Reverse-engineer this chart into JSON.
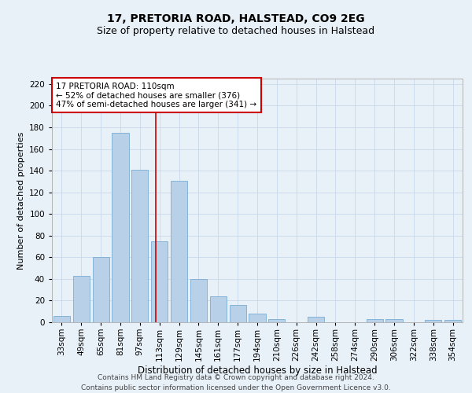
{
  "title1": "17, PRETORIA ROAD, HALSTEAD, CO9 2EG",
  "title2": "Size of property relative to detached houses in Halstead",
  "xlabel": "Distribution of detached houses by size in Halstead",
  "ylabel": "Number of detached properties",
  "categories": [
    "33sqm",
    "49sqm",
    "65sqm",
    "81sqm",
    "97sqm",
    "113sqm",
    "129sqm",
    "145sqm",
    "161sqm",
    "177sqm",
    "194sqm",
    "210sqm",
    "226sqm",
    "242sqm",
    "258sqm",
    "274sqm",
    "290sqm",
    "306sqm",
    "322sqm",
    "338sqm",
    "354sqm"
  ],
  "values": [
    6,
    43,
    60,
    175,
    141,
    75,
    131,
    40,
    24,
    16,
    8,
    3,
    0,
    5,
    0,
    0,
    3,
    3,
    0,
    2,
    2
  ],
  "bar_color": "#b8d0e8",
  "bar_edge_color": "#7aadd4",
  "grid_color": "#c8d8ea",
  "background_color": "#e8f0f8",
  "marker_color": "#cc0000",
  "annotation_line1": "17 PRETORIA ROAD: 110sqm",
  "annotation_line2": "← 52% of detached houses are smaller (376)",
  "annotation_line3": "47% of semi-detached houses are larger (341) →",
  "annotation_box_color": "#cc0000",
  "ylim": [
    0,
    225
  ],
  "yticks": [
    0,
    20,
    40,
    60,
    80,
    100,
    120,
    140,
    160,
    180,
    200,
    220
  ],
  "footnote1": "Contains HM Land Registry data © Crown copyright and database right 2024.",
  "footnote2": "Contains public sector information licensed under the Open Government Licence v3.0.",
  "title1_fontsize": 10,
  "title2_fontsize": 9,
  "xlabel_fontsize": 8.5,
  "ylabel_fontsize": 8,
  "tick_fontsize": 7.5,
  "annotation_fontsize": 7.5,
  "footnote_fontsize": 6.5
}
